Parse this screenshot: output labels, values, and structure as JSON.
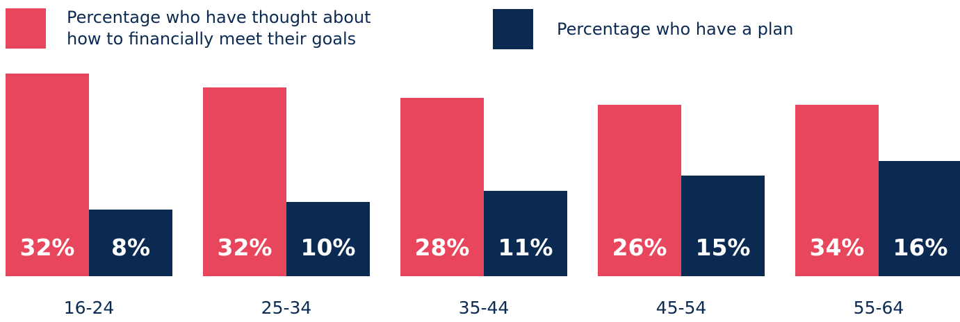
{
  "colors": {
    "thought": "#e8465c",
    "plan": "#0b2a52",
    "label": "#ffffff",
    "text": "#0b2a52"
  },
  "legend": [
    {
      "label": "Percentage who have thought about\nhow to financially meet their goals",
      "color": "#e8465c"
    },
    {
      "label": "Percentage who have a plan",
      "color": "#0b2a52"
    }
  ],
  "chart_data": {
    "type": "bar",
    "title": "",
    "xlabel": "",
    "ylabel": "",
    "categories": [
      "16-24",
      "25-34",
      "35-44",
      "45-54",
      "55-64"
    ],
    "series": [
      {
        "name": "Percentage who have thought about how to financially meet their goals",
        "values": [
          32,
          32,
          28,
          26,
          34
        ],
        "labels": [
          "32%",
          "32%",
          "28%",
          "26%",
          "34%"
        ],
        "color": "#e8465c"
      },
      {
        "name": "Percentage who have a plan",
        "values": [
          8,
          10,
          11,
          15,
          16
        ],
        "labels": [
          "8%",
          "10%",
          "11%",
          "15%",
          "16%"
        ],
        "color": "#0b2a52"
      }
    ]
  }
}
